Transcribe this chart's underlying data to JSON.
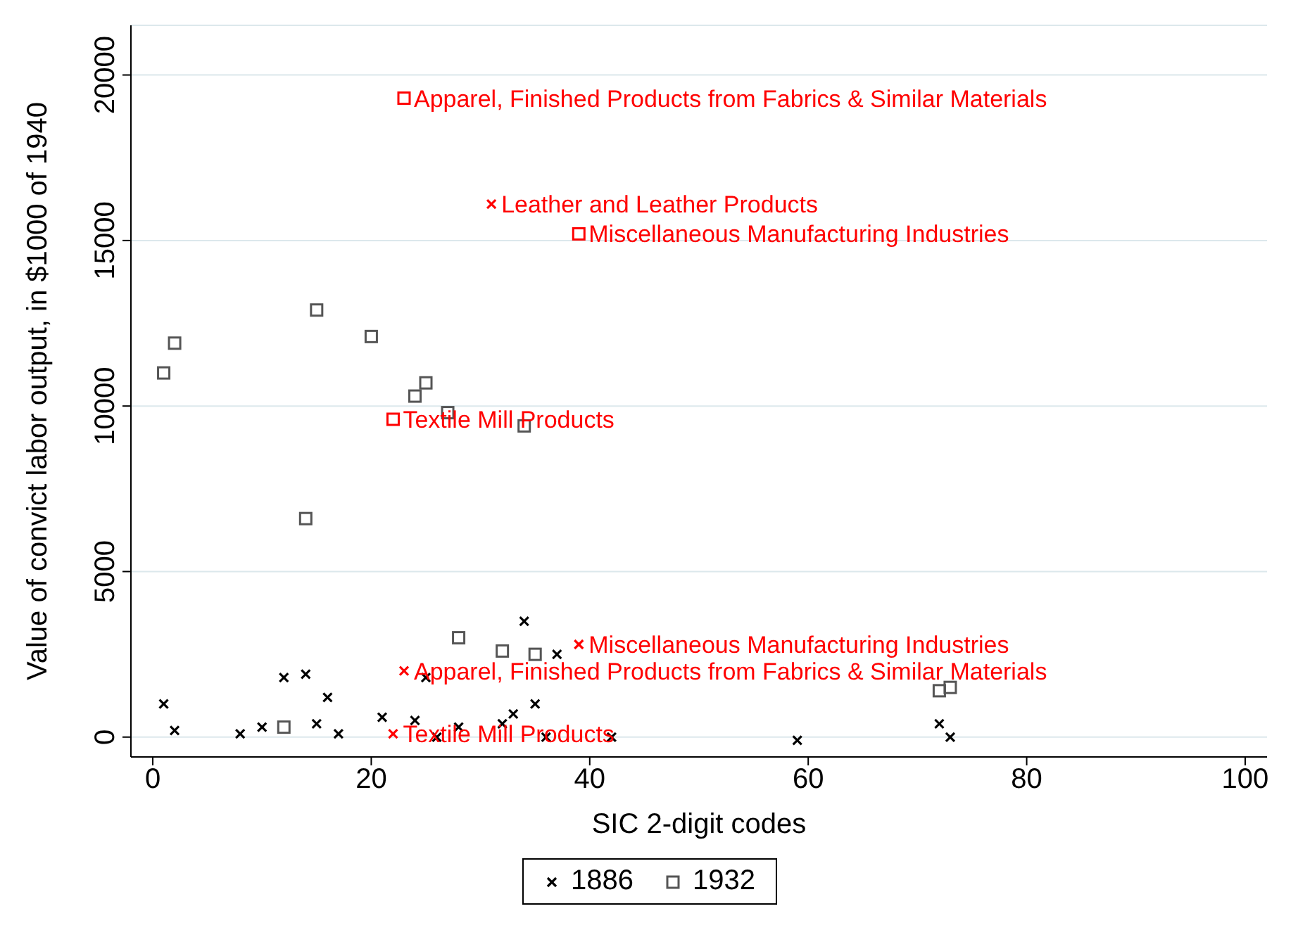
{
  "chart_data": {
    "type": "scatter",
    "xlabel": "SIC 2-digit codes",
    "ylabel": "Value of convict labor output, in $1000 of 1940",
    "xlim": [
      -2,
      102
    ],
    "xticks": [
      0,
      20,
      40,
      60,
      80,
      100
    ],
    "ylim": [
      -600,
      21500
    ],
    "yticks": [
      0,
      5000,
      10000,
      15000,
      20000
    ],
    "grid": "y",
    "legend": "bottom",
    "series": [
      {
        "name": "1886",
        "color": "#000000",
        "marker": "cross",
        "x": [
          1,
          2,
          8,
          10,
          12,
          14,
          15,
          16,
          17,
          21,
          24,
          25,
          26,
          28,
          32,
          33,
          34,
          35,
          36,
          37,
          42,
          59,
          72,
          73
        ],
        "values": [
          1000,
          200,
          100,
          300,
          1800,
          1900,
          400,
          1200,
          100,
          600,
          500,
          1800,
          0,
          300,
          400,
          700,
          3500,
          1000,
          0,
          2500,
          0,
          -100,
          400,
          0
        ]
      },
      {
        "name": "1932",
        "color": "#555555",
        "marker": "square",
        "x": [
          1,
          2,
          12,
          14,
          15,
          20,
          24,
          25,
          27,
          28,
          32,
          34,
          35,
          72,
          73
        ],
        "values": [
          11000,
          11900,
          300,
          6600,
          12900,
          12100,
          10300,
          10700,
          9800,
          3000,
          2600,
          9400,
          2500,
          1400,
          1500
        ]
      },
      {
        "color": "#ff0000",
        "marker": "cross",
        "x": [
          22,
          23,
          31,
          39
        ],
        "values": [
          100,
          2000,
          16100,
          2800
        ]
      },
      {
        "color": "#ff0000",
        "marker": "square",
        "x": [
          22,
          23,
          39
        ],
        "values": [
          9600,
          19300,
          15200
        ]
      }
    ],
    "annotations": [
      {
        "text": "Textile Mill Products",
        "x": 22,
        "y": 100
      },
      {
        "text": "Apparel, Finished Products from Fabrics & Similar Materials",
        "x": 23,
        "y": 2000
      },
      {
        "text": "Leather and Leather Products",
        "x": 31,
        "y": 16100
      },
      {
        "text": "Miscellaneous Manufacturing Industries",
        "x": 39,
        "y": 2800
      },
      {
        "text": "Textile Mill Products",
        "x": 22,
        "y": 9600
      },
      {
        "text": "Apparel, Finished Products from Fabrics & Similar Materials",
        "x": 23,
        "y": 19300
      },
      {
        "text": "Miscellaneous Manufacturing Industries",
        "x": 39,
        "y": 15200
      }
    ]
  }
}
